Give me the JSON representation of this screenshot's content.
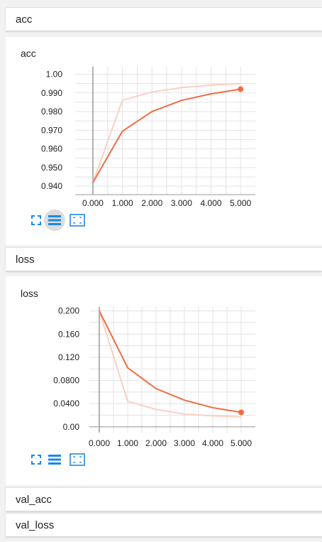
{
  "sections": {
    "acc": {
      "header": "acc",
      "card_title": "acc"
    },
    "loss": {
      "header": "loss",
      "card_title": "loss"
    },
    "val_acc": {
      "header": "val_acc"
    },
    "val_loss": {
      "header": "val_loss"
    }
  },
  "colors": {
    "smoothed_line": "#f26b43",
    "raw_line": "#fbd0c2",
    "grid": "#e3e3e3",
    "axis": "#999999",
    "toolbar_icon": "#1e88e5"
  },
  "toolbar_icons": [
    "fullscreen-icon",
    "toggle-log-scale-icon",
    "fit-domain-icon"
  ],
  "chart_data": [
    {
      "type": "line",
      "title": "acc",
      "x": [
        0,
        1,
        2,
        3,
        4,
        5
      ],
      "xlim": [
        -0.6,
        5.5
      ],
      "ylim": [
        0.9355,
        1.004
      ],
      "x_ticks": [
        "0.000",
        "1.000",
        "2.000",
        "3.000",
        "4.000",
        "5.000"
      ],
      "y_ticks": [
        {
          "value": 1.0,
          "label": "1.00"
        },
        {
          "value": 0.99,
          "label": "0.990"
        },
        {
          "value": 0.98,
          "label": "0.980"
        },
        {
          "value": 0.97,
          "label": "0.970"
        },
        {
          "value": 0.96,
          "label": "0.960"
        },
        {
          "value": 0.95,
          "label": "0.950"
        },
        {
          "value": 0.94,
          "label": "0.940"
        }
      ],
      "series": [
        {
          "role": "raw",
          "values": [
            0.942,
            0.986,
            0.9905,
            0.9928,
            0.9942,
            0.995
          ]
        },
        {
          "role": "smoothed",
          "values": [
            0.942,
            0.9695,
            0.98,
            0.986,
            0.9895,
            0.992
          ]
        }
      ],
      "grid": true
    },
    {
      "type": "line",
      "title": "loss",
      "x": [
        0,
        1,
        2,
        3,
        4,
        5
      ],
      "xlim": [
        -0.35,
        5.5
      ],
      "ylim": [
        -0.01,
        0.207
      ],
      "x_ticks": [
        "0.000",
        "1.000",
        "2.000",
        "3.000",
        "4.000",
        "5.000"
      ],
      "y_ticks": [
        {
          "value": 0.2,
          "label": "0.200"
        },
        {
          "value": 0.16,
          "label": "0.160"
        },
        {
          "value": 0.12,
          "label": "0.120"
        },
        {
          "value": 0.08,
          "label": "0.0800"
        },
        {
          "value": 0.04,
          "label": "0.0400"
        },
        {
          "value": 0.0,
          "label": "0.00"
        }
      ],
      "series": [
        {
          "role": "raw",
          "values": [
            0.2,
            0.044,
            0.03,
            0.022,
            0.019,
            0.017
          ]
        },
        {
          "role": "smoothed",
          "values": [
            0.2,
            0.102,
            0.066,
            0.046,
            0.033,
            0.025
          ]
        }
      ],
      "grid": true
    }
  ]
}
